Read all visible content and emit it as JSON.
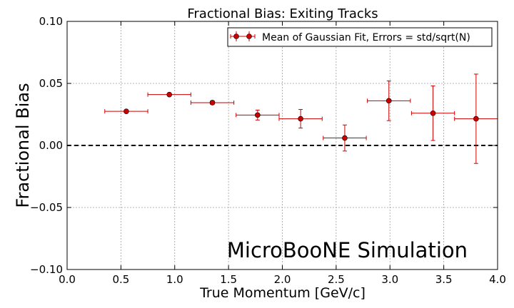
{
  "chart_data": {
    "type": "scatter",
    "title": "Fractional Bias: Exiting Tracks",
    "xlabel": "True Momentum [GeV/c]",
    "ylabel": "Fractional Bias",
    "xlim": [
      0.0,
      4.0
    ],
    "ylim": [
      -0.1,
      0.1
    ],
    "x_ticks": [
      "0.0",
      "0.5",
      "1.0",
      "1.5",
      "2.0",
      "2.5",
      "3.0",
      "3.5",
      "4.0"
    ],
    "y_ticks": [
      "−0.10",
      "−0.05",
      "0.00",
      "0.05",
      "0.10"
    ],
    "grid": true,
    "legend_position": "top-right",
    "reference_line": {
      "y": 0.0,
      "style": "dashed",
      "color": "#000000"
    },
    "series": [
      {
        "name": "Mean of Gaussian Fit, Errors = std/sqrt(N)",
        "color": "#cc0000",
        "points": [
          {
            "x": 0.55,
            "y": 0.0275,
            "x_err": 0.2,
            "y_err": 0.0008
          },
          {
            "x": 0.95,
            "y": 0.041,
            "x_err": 0.2,
            "y_err": 0.0008
          },
          {
            "x": 1.35,
            "y": 0.0345,
            "x_err": 0.2,
            "y_err": 0.0015
          },
          {
            "x": 1.77,
            "y": 0.0245,
            "x_err": 0.2,
            "y_err": 0.004
          },
          {
            "x": 2.17,
            "y": 0.0215,
            "x_err": 0.2,
            "y_err": 0.0075
          },
          {
            "x": 2.58,
            "y": 0.006,
            "x_err": 0.2,
            "y_err": 0.0105
          },
          {
            "x": 2.99,
            "y": 0.036,
            "x_err": 0.2,
            "y_err": 0.016
          },
          {
            "x": 3.4,
            "y": 0.026,
            "x_err": 0.2,
            "y_err": 0.022
          },
          {
            "x": 3.8,
            "y": 0.0215,
            "x_err": 0.2,
            "y_err": 0.036
          }
        ]
      }
    ],
    "annotations": [
      {
        "text": "MicroBooNE Simulation",
        "position": "bottom-right"
      }
    ]
  }
}
